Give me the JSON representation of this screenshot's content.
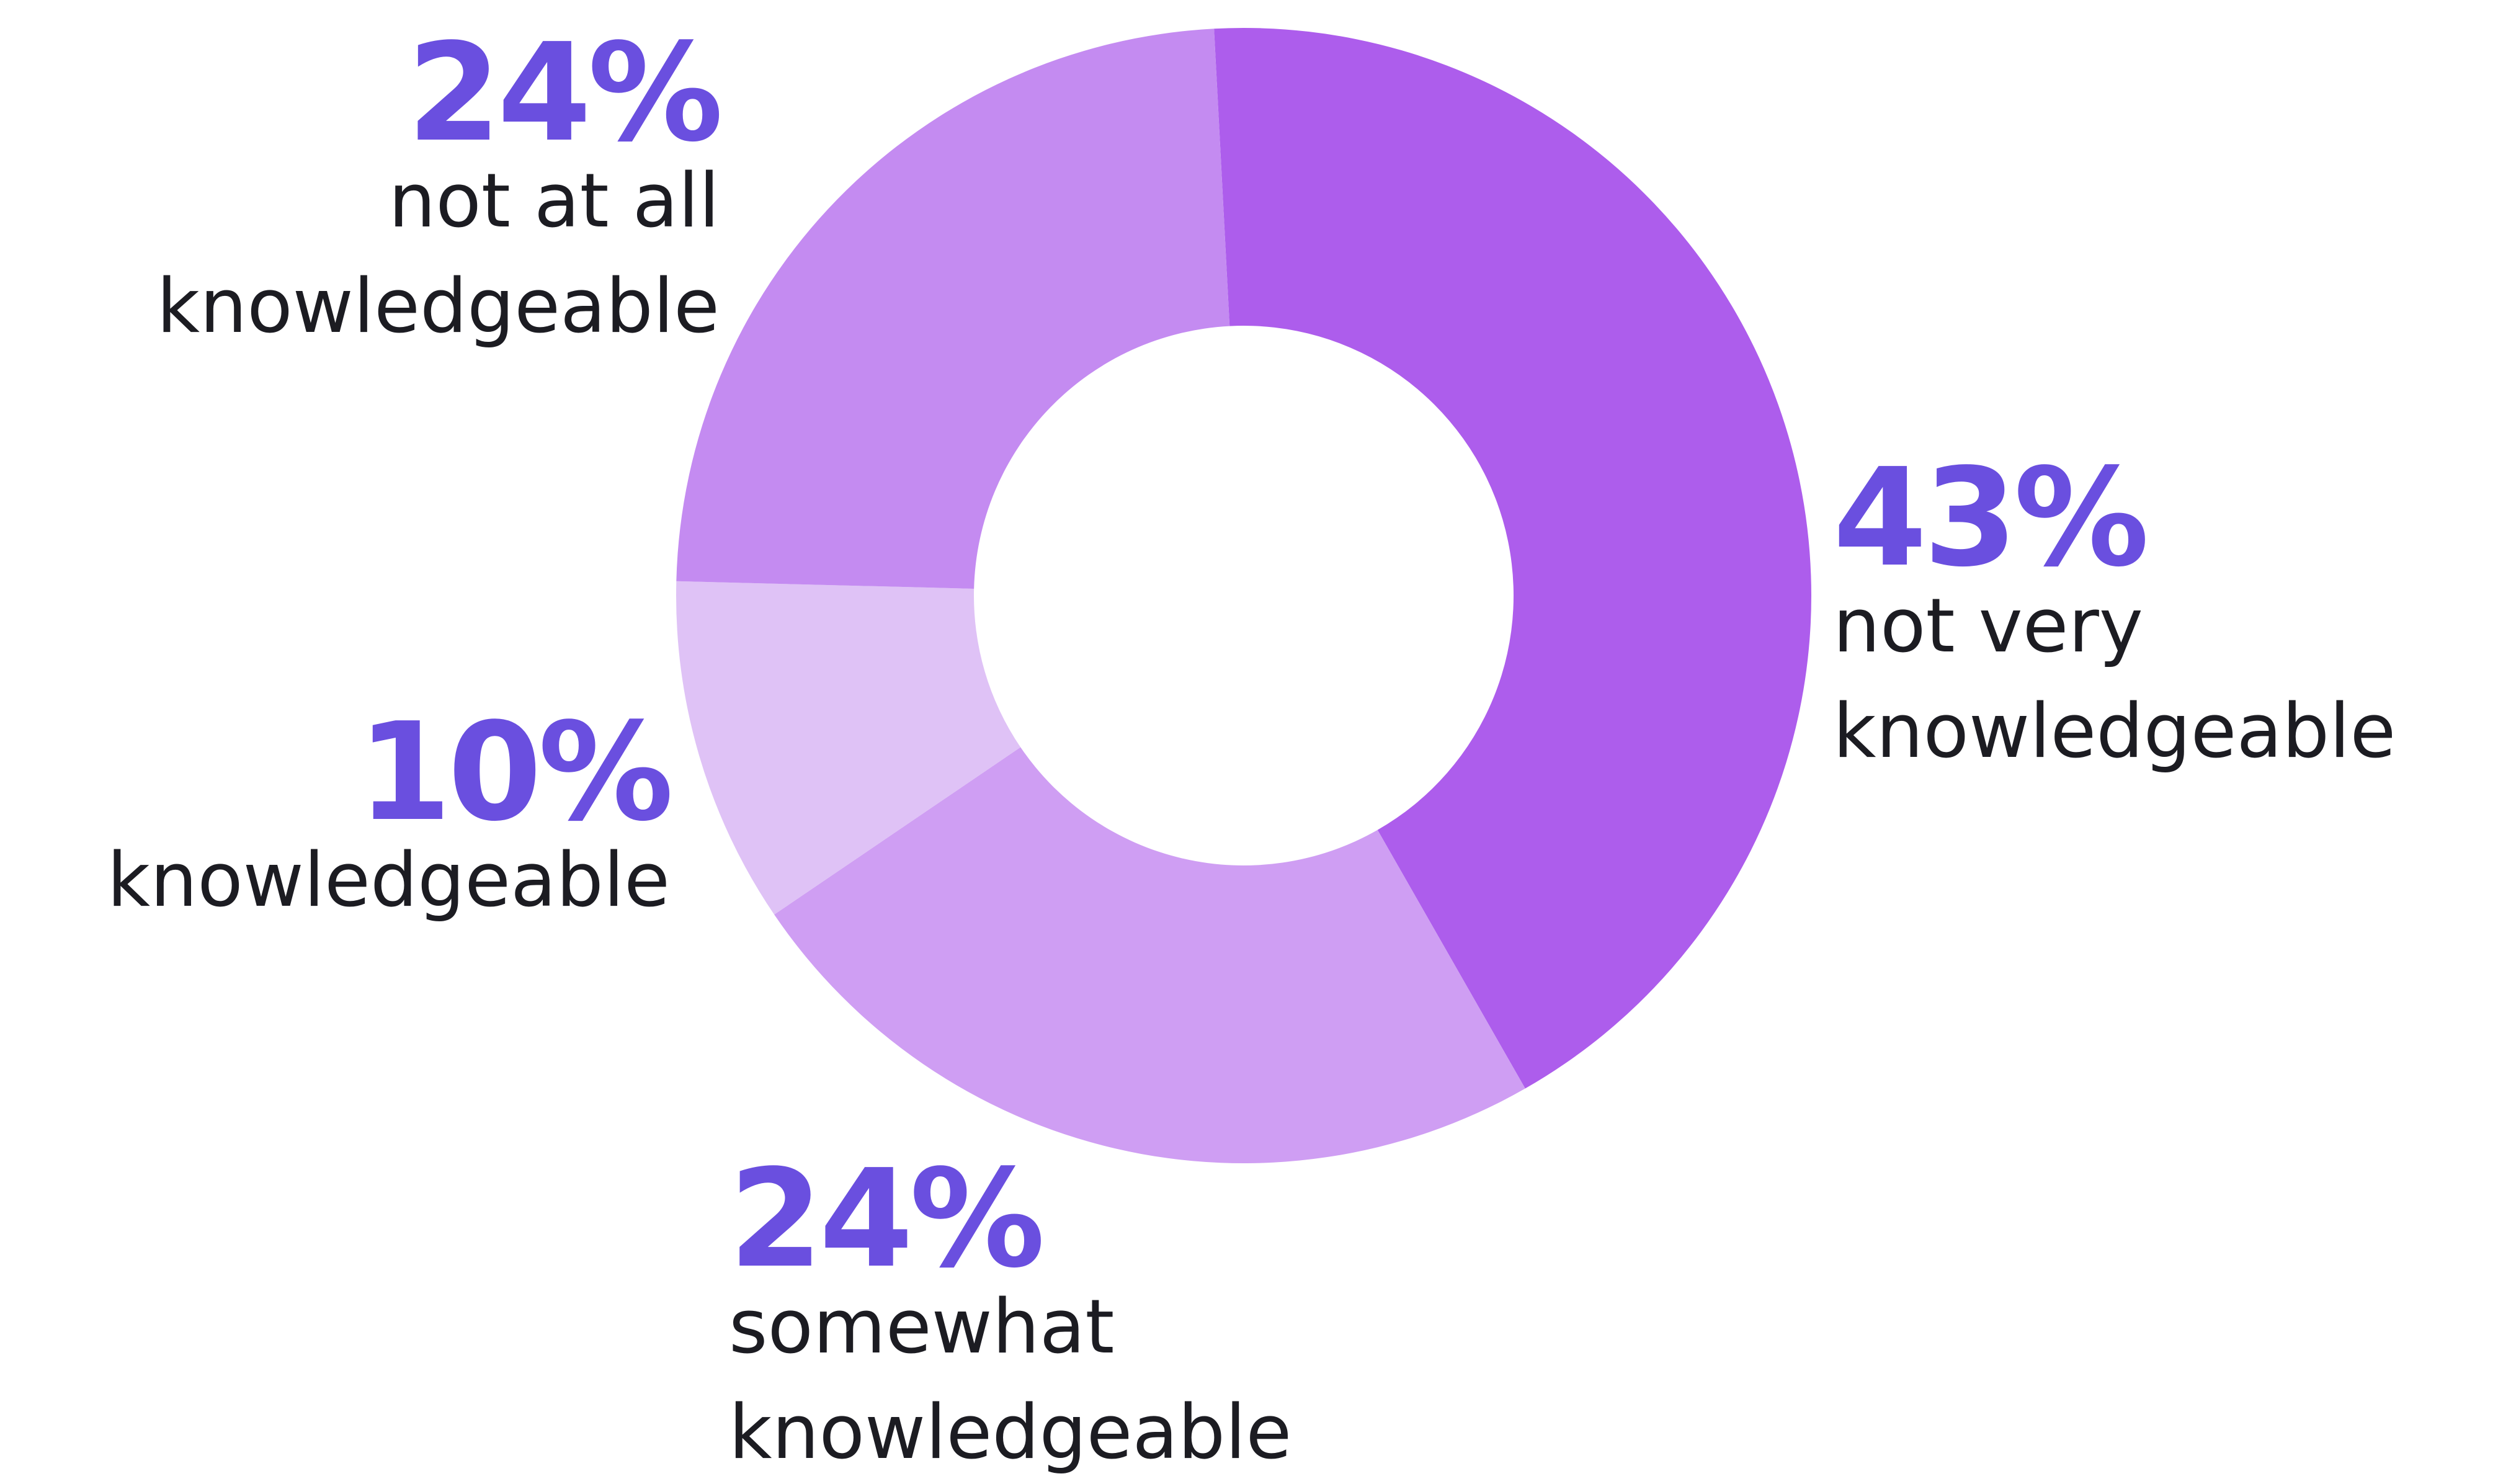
{
  "chart_data": {
    "type": "pie",
    "style": "donut",
    "label_color": "#6a4fdf",
    "slices": [
      {
        "key": "not-very-knowledgeable",
        "value": 43,
        "pct_text": "43%",
        "label_lines": [
          "not very",
          "knowledgeable"
        ],
        "color": "#ad5dec"
      },
      {
        "key": "somewhat-knowledgeable",
        "value": 24,
        "pct_text": "24%",
        "label_lines": [
          "somewhat",
          "knowledgeable"
        ],
        "color": "#cf9ef3"
      },
      {
        "key": "knowledgeable",
        "value": 10,
        "pct_text": "10%",
        "label_lines": [
          "knowledgeable"
        ],
        "color": "#dfc2f6"
      },
      {
        "key": "not-at-all-knowledgeable",
        "value": 24,
        "pct_text": "24%",
        "label_lines": [
          "not at all",
          "knowledgeable"
        ],
        "color": "#c48bf1"
      }
    ]
  }
}
